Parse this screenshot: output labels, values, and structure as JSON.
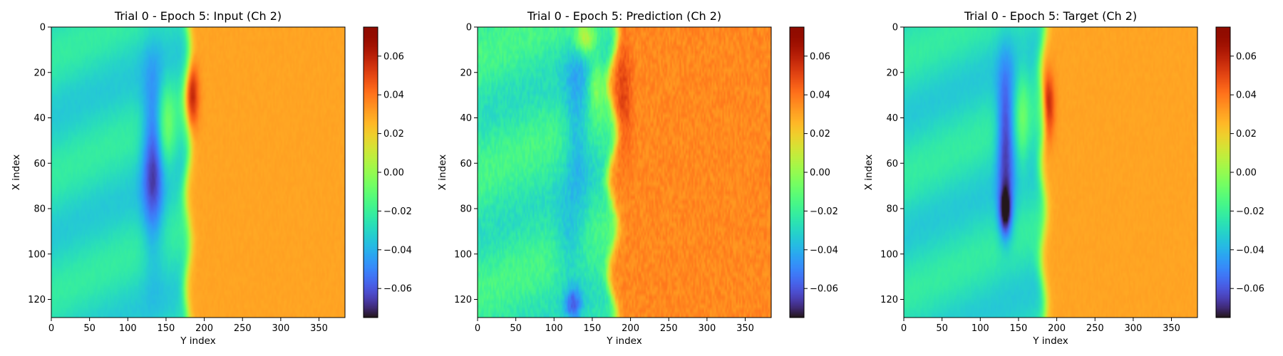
{
  "chart_data": [
    {
      "type": "heatmap",
      "title": "Trial 0 - Epoch 5: Input (Ch 2)",
      "xlabel": "Y index",
      "ylabel": "X index",
      "xlim": [
        0,
        384
      ],
      "ylim": [
        128,
        0
      ],
      "xticks": [
        "0",
        "50",
        "100",
        "150",
        "200",
        "250",
        "300",
        "350"
      ],
      "yticks": [
        "0",
        "20",
        "40",
        "60",
        "80",
        "100",
        "120"
      ],
      "colorbar": {
        "range": [
          -0.075,
          0.075
        ],
        "ticks": [
          "0.06",
          "0.04",
          "0.02",
          "0.00",
          "−0.02",
          "−0.04",
          "−0.06"
        ],
        "colormap": "turbo"
      },
      "field": {
        "left_value": -0.028,
        "right_value": 0.03,
        "front_y": 178,
        "front_wiggle": 3,
        "blobs": [
          {
            "x": 133,
            "y": 60,
            "sx": 10,
            "sy": 28,
            "v": -0.035
          },
          {
            "x": 184,
            "y": 30,
            "sx": 6,
            "sy": 10,
            "v": 0.03
          },
          {
            "x": 150,
            "y": 45,
            "sx": 8,
            "sy": 14,
            "v": 0.02
          }
        ],
        "noise": 0.002
      }
    },
    {
      "type": "heatmap",
      "title": "Trial 0 - Epoch 5: Prediction (Ch 2)",
      "xlabel": "Y index",
      "ylabel": "X index",
      "xlim": [
        0,
        384
      ],
      "ylim": [
        128,
        0
      ],
      "xticks": [
        "0",
        "50",
        "100",
        "150",
        "200",
        "250",
        "300",
        "350"
      ],
      "yticks": [
        "0",
        "20",
        "40",
        "60",
        "80",
        "100",
        "120"
      ],
      "colorbar": {
        "range": [
          -0.075,
          0.075
        ],
        "ticks": [
          "0.06",
          "0.04",
          "0.02",
          "0.00",
          "−0.02",
          "−0.04",
          "−0.06"
        ],
        "colormap": "turbo"
      },
      "field": {
        "left_value": -0.022,
        "right_value": 0.036,
        "front_y": 176,
        "front_wiggle": 6,
        "blobs": [
          {
            "x": 130,
            "y": 40,
            "sx": 12,
            "sy": 25,
            "v": -0.02
          },
          {
            "x": 120,
            "y": 95,
            "sx": 14,
            "sy": 12,
            "v": -0.015
          },
          {
            "x": 190,
            "y": 30,
            "sx": 8,
            "sy": 18,
            "v": 0.015
          },
          {
            "x": 140,
            "y": 5,
            "sx": 10,
            "sy": 5,
            "v": 0.035
          },
          {
            "x": 125,
            "y": 122,
            "sx": 8,
            "sy": 5,
            "v": -0.03
          },
          {
            "x": 155,
            "y": 25,
            "sx": 6,
            "sy": 8,
            "v": 0.02
          }
        ],
        "noise": 0.008
      }
    },
    {
      "type": "heatmap",
      "title": "Trial 0 - Epoch 5: Target (Ch 2)",
      "xlabel": "Y index",
      "ylabel": "X index",
      "xlim": [
        0,
        384
      ],
      "ylim": [
        128,
        0
      ],
      "xticks": [
        "0",
        "50",
        "100",
        "150",
        "200",
        "250",
        "300",
        "350"
      ],
      "yticks": [
        "0",
        "20",
        "40",
        "60",
        "80",
        "100",
        "120"
      ],
      "colorbar": {
        "range": [
          -0.075,
          0.075
        ],
        "ticks": [
          "0.06",
          "0.04",
          "0.02",
          "0.00",
          "−0.02",
          "−0.04",
          "−0.06"
        ],
        "colormap": "turbo"
      },
      "field": {
        "left_value": -0.028,
        "right_value": 0.03,
        "front_y": 182,
        "front_wiggle": 3,
        "blobs": [
          {
            "x": 133,
            "y": 48,
            "sx": 8,
            "sy": 22,
            "v": -0.04
          },
          {
            "x": 133,
            "y": 82,
            "sx": 6,
            "sy": 8,
            "v": -0.045
          },
          {
            "x": 188,
            "y": 35,
            "sx": 6,
            "sy": 10,
            "v": 0.035
          },
          {
            "x": 155,
            "y": 40,
            "sx": 6,
            "sy": 16,
            "v": 0.015
          }
        ],
        "noise": 0.002
      }
    }
  ]
}
